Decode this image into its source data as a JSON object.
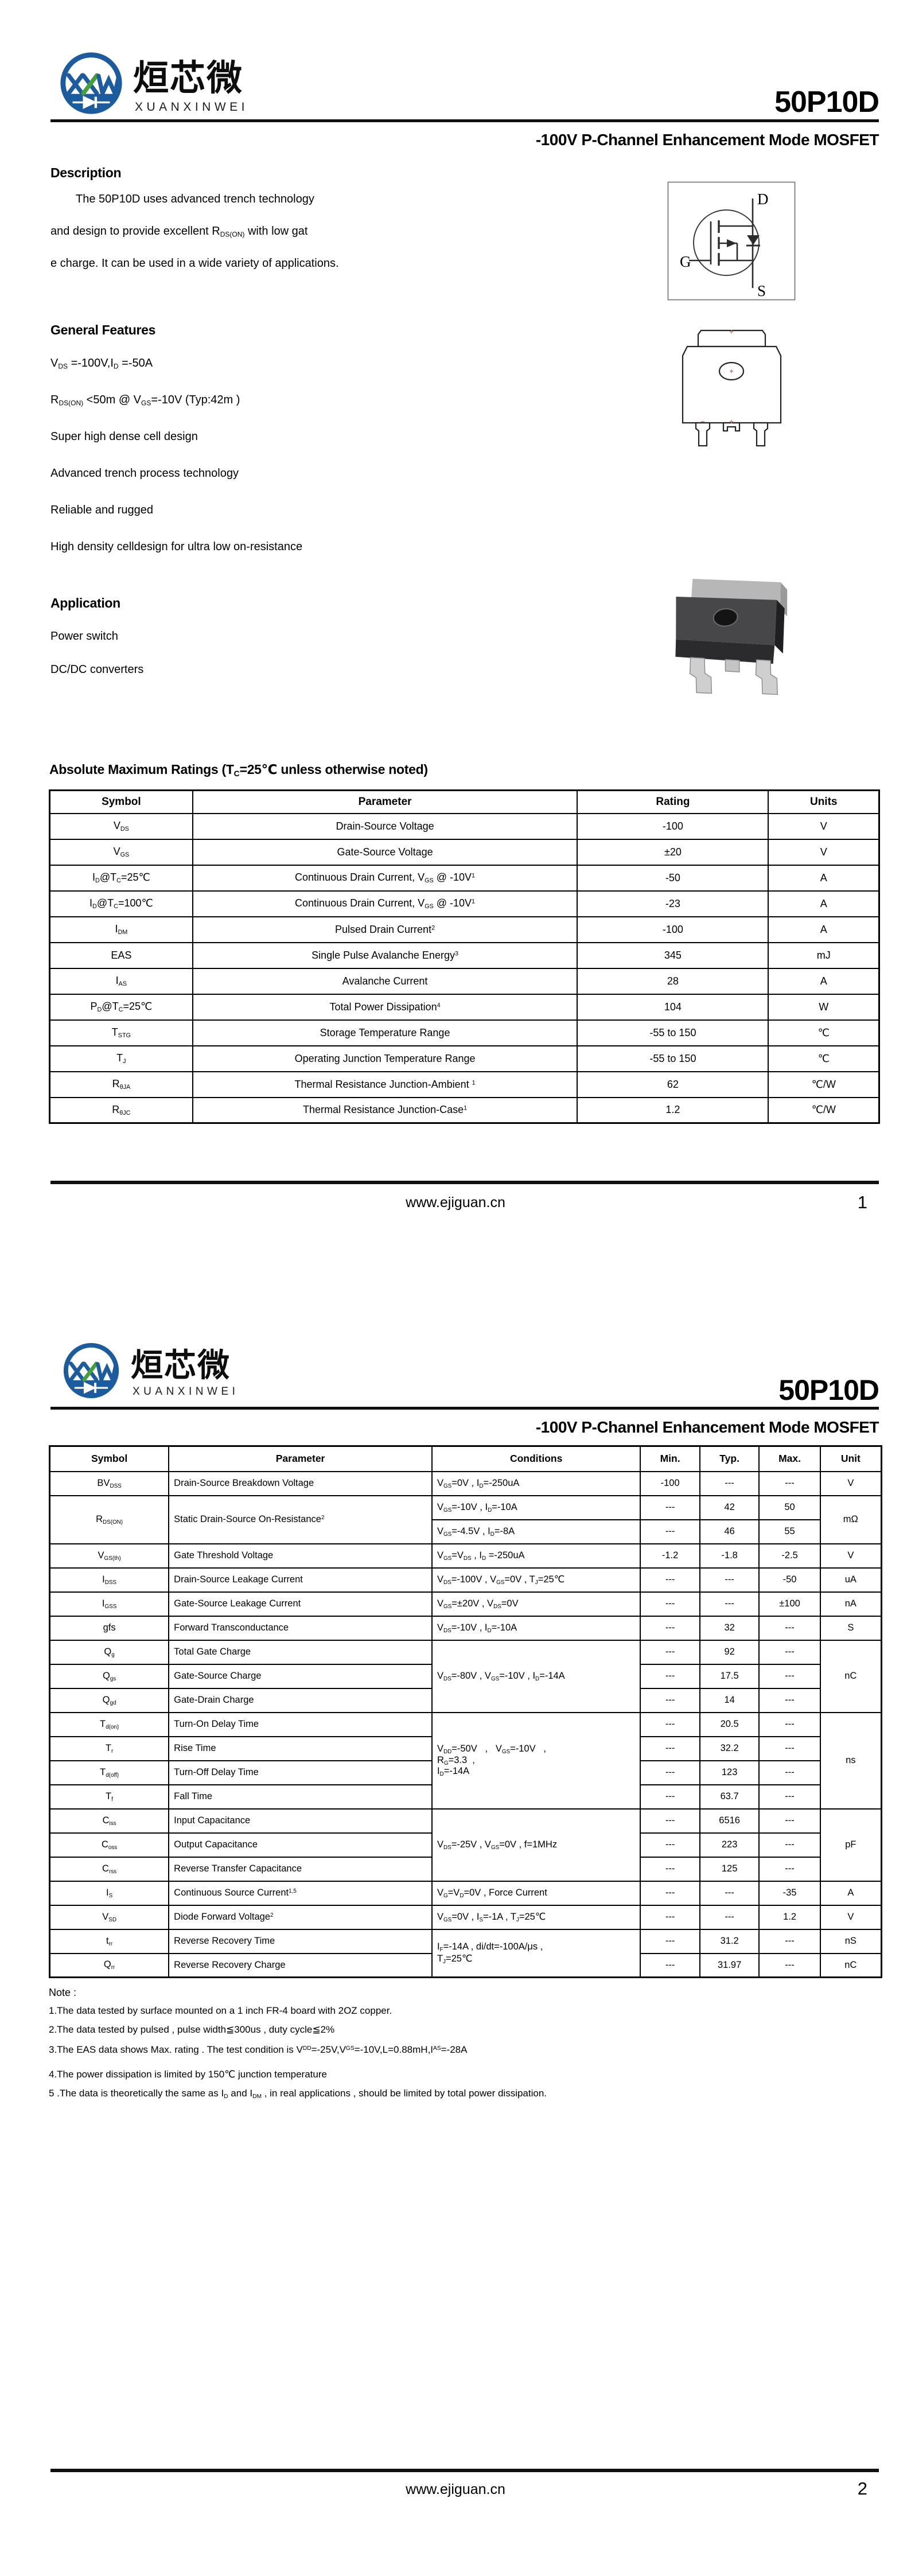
{
  "brand": {
    "cn": "烜芯微",
    "en": "XUANXINWEI"
  },
  "colors": {
    "logo_blue": "#1b5b9e",
    "logo_green": "#45a03c",
    "ink": "#000000"
  },
  "page1": {
    "part_number": "50P10D",
    "subtitle": "-100V P-Channel Enhancement Mode MOSFET",
    "description": {
      "heading": "Description",
      "lines": [
        "The 50P10D uses advanced trench technology",
        "and design to provide excellent R<sub>DS(ON)</sub> with low gat",
        "e charge. It can be used in a wide variety of applications."
      ]
    },
    "mosfet_symbol": {
      "drain": "D",
      "gate": "G",
      "source": "S"
    },
    "features": {
      "heading": "General Features",
      "items": [
        "V<sub>DS</sub> =-100V,I<sub>D</sub> =-50A",
        "R<sub>DS(ON)</sub> &lt;50m @ V<sub>GS</sub>=-10V  (Typ:42m )",
        "Super high dense cell design",
        "Advanced trench process technology",
        "Reliable and rugged",
        "High density celldesign for ultra low on-resistance"
      ]
    },
    "application": {
      "heading": "Application",
      "items": [
        "Power switch",
        "DC/DC converters"
      ]
    },
    "amr": {
      "heading": "Absolute Maximum Ratings (T<sub>C</sub>=25℃ unless otherwise noted)",
      "columns": [
        "Symbol",
        "Parameter",
        "Rating",
        "Units"
      ],
      "rows": [
        [
          "V<sub>DS</sub>",
          "Drain-Source Voltage",
          "-100",
          "V"
        ],
        [
          "V<sub>GS</sub>",
          "Gate-Source Voltage",
          "±20",
          "V"
        ],
        [
          "I<sub>D</sub>@T<sub>C</sub>=25℃",
          "Continuous Drain Current, V<sub>GS</sub> @ -10V<sup>1</sup>",
          "-50",
          "A"
        ],
        [
          "I<sub>D</sub>@T<sub>C</sub>=100℃",
          "Continuous Drain Current, V<sub>GS</sub> @ -10V<sup>1</sup>",
          "-23",
          "A"
        ],
        [
          "I<sub>DM</sub>",
          "Pulsed Drain Current<sup>2</sup>",
          "-100",
          "A"
        ],
        [
          "EAS",
          "Single Pulse Avalanche Energy<sup>3</sup>",
          "345",
          "mJ"
        ],
        [
          "I<sub>AS</sub>",
          "Avalanche Current",
          "28",
          "A"
        ],
        [
          "P<sub>D</sub>@T<sub>C</sub>=25℃",
          "Total Power Dissipation<sup>4</sup>",
          "104",
          "W"
        ],
        [
          "T<sub>STG</sub>",
          "Storage Temperature Range",
          "-55 to 150",
          "℃"
        ],
        [
          "T<sub>J</sub>",
          "Operating Junction Temperature Range",
          "-55 to 150",
          "℃"
        ],
        [
          "R<sub>θJA</sub>",
          "Thermal Resistance Junction-Ambient <sup>1</sup>",
          "62",
          "℃/W"
        ],
        [
          "R<sub>θJC</sub>",
          "Thermal Resistance Junction-Case<sup>1</sup>",
          "1.2",
          "℃/W"
        ]
      ]
    },
    "footer": {
      "url": "www.ejiguan.cn",
      "page": "1"
    }
  },
  "page2": {
    "part_number": "50P10D",
    "subtitle": "-100V P-Channel Enhancement Mode MOSFET",
    "ec": {
      "columns": [
        "Symbol",
        "Parameter",
        "Conditions",
        "Min.",
        "Typ.",
        "Max.",
        "Unit"
      ],
      "rows": [
        [
          {
            "t": "BV<sub>DSS</sub>"
          },
          {
            "t": "Drain-Source Breakdown Voltage",
            "cls": "left"
          },
          {
            "t": "V<sub>GS</sub>=0V , I<sub>D</sub>=-250uA",
            "cls": "left"
          },
          {
            "t": "-100"
          },
          {
            "t": "---"
          },
          {
            "t": "---"
          },
          {
            "t": "V"
          }
        ],
        [
          {
            "t": "R<sub>DS(ON)</sub>",
            "rs": 2
          },
          {
            "t": "Static Drain-Source On-Resistance<sup>2</sup>",
            "rs": 2,
            "cls": "left"
          },
          {
            "t": "V<sub>GS</sub>=-10V , I<sub>D</sub>=-10A",
            "cls": "left"
          },
          {
            "t": "---"
          },
          {
            "t": "42"
          },
          {
            "t": "50"
          },
          {
            "t": "mΩ",
            "rs": 2
          }
        ],
        [
          {
            "t": "V<sub>GS</sub>=-4.5V , I<sub>D</sub>=-8A",
            "cls": "left"
          },
          {
            "t": "---"
          },
          {
            "t": "46"
          },
          {
            "t": "55"
          }
        ],
        [
          {
            "t": "V<sub>GS(th)</sub>"
          },
          {
            "t": "Gate Threshold Voltage",
            "cls": "left"
          },
          {
            "t": "V<sub>GS</sub>=V<sub>DS</sub> , I<sub>D</sub> =-250uA",
            "cls": "left"
          },
          {
            "t": "-1.2"
          },
          {
            "t": "-1.8"
          },
          {
            "t": "-2.5"
          },
          {
            "t": "V"
          }
        ],
        [
          {
            "t": "I<sub>DSS</sub>"
          },
          {
            "t": "Drain-Source Leakage Current",
            "cls": "left"
          },
          {
            "t": "V<sub>DS</sub>=-100V , V<sub>GS</sub>=0V , T<sub>J</sub>=25℃",
            "cls": "left"
          },
          {
            "t": "---"
          },
          {
            "t": "---"
          },
          {
            "t": "-50"
          },
          {
            "t": "uA"
          }
        ],
        [
          {
            "t": "I<sub>GSS</sub>"
          },
          {
            "t": "Gate-Source Leakage Current",
            "cls": "left"
          },
          {
            "t": "V<sub>GS</sub>=±20V , V<sub>DS</sub>=0V",
            "cls": "left"
          },
          {
            "t": "---"
          },
          {
            "t": "---"
          },
          {
            "t": "±100"
          },
          {
            "t": "nA"
          }
        ],
        [
          {
            "t": "gfs"
          },
          {
            "t": "Forward Transconductance",
            "cls": "left"
          },
          {
            "t": "V<sub>DS</sub>=-10V , I<sub>D</sub>=-10A",
            "cls": "left"
          },
          {
            "t": "---"
          },
          {
            "t": "32"
          },
          {
            "t": "---"
          },
          {
            "t": "S"
          }
        ],
        [
          {
            "t": "Q<sub>g</sub>"
          },
          {
            "t": "Total Gate Charge",
            "cls": "left"
          },
          {
            "t": "V<sub>DS</sub>=-80V , V<sub>GS</sub>=-10V , I<sub>D</sub>=-14A",
            "rs": 3,
            "cls": "left"
          },
          {
            "t": "---"
          },
          {
            "t": "92"
          },
          {
            "t": "---"
          },
          {
            "t": "nC",
            "rs": 3
          }
        ],
        [
          {
            "t": "Q<sub>gs</sub>"
          },
          {
            "t": "Gate-Source Charge",
            "cls": "left"
          },
          {
            "t": "---"
          },
          {
            "t": "17.5"
          },
          {
            "t": "---"
          }
        ],
        [
          {
            "t": "Q<sub>gd</sub>"
          },
          {
            "t": "Gate-Drain Charge",
            "cls": "left"
          },
          {
            "t": "---"
          },
          {
            "t": "14"
          },
          {
            "t": "---"
          }
        ],
        [
          {
            "t": "T<sub>d(on)</sub>"
          },
          {
            "t": "Turn-On Delay Time",
            "cls": "left"
          },
          {
            "t": "V<sub>DD</sub>=-50V&nbsp;&nbsp;&nbsp;,&nbsp;&nbsp;&nbsp;V<sub>GS</sub>=-10V&nbsp;&nbsp;&nbsp;,<br>R<sub>G</sub>=3.3&nbsp;&nbsp;,<br>I<sub>D</sub>=-14A",
            "rs": 4,
            "cls": "left"
          },
          {
            "t": "---"
          },
          {
            "t": "20.5"
          },
          {
            "t": "---"
          },
          {
            "t": "ns",
            "rs": 4
          }
        ],
        [
          {
            "t": "T<sub>r</sub>"
          },
          {
            "t": "Rise Time",
            "cls": "left"
          },
          {
            "t": "---"
          },
          {
            "t": "32.2"
          },
          {
            "t": "---"
          }
        ],
        [
          {
            "t": "T<sub>d(off)</sub>"
          },
          {
            "t": "Turn-Off Delay Time",
            "cls": "left"
          },
          {
            "t": "---"
          },
          {
            "t": "123"
          },
          {
            "t": "---"
          }
        ],
        [
          {
            "t": "T<sub>f</sub>"
          },
          {
            "t": "Fall Time",
            "cls": "left"
          },
          {
            "t": "---"
          },
          {
            "t": "63.7"
          },
          {
            "t": "---"
          }
        ],
        [
          {
            "t": "C<sub>iss</sub>"
          },
          {
            "t": "Input Capacitance",
            "cls": "left"
          },
          {
            "t": "V<sub>DS</sub>=-25V , V<sub>GS</sub>=0V , f=1MHz",
            "rs": 3,
            "cls": "left"
          },
          {
            "t": "---"
          },
          {
            "t": "6516"
          },
          {
            "t": "---"
          },
          {
            "t": "pF",
            "rs": 3
          }
        ],
        [
          {
            "t": "C<sub>oss</sub>"
          },
          {
            "t": "Output Capacitance",
            "cls": "left"
          },
          {
            "t": "---"
          },
          {
            "t": "223"
          },
          {
            "t": "---"
          }
        ],
        [
          {
            "t": "C<sub>rss</sub>"
          },
          {
            "t": "Reverse Transfer Capacitance",
            "cls": "left"
          },
          {
            "t": "---"
          },
          {
            "t": "125"
          },
          {
            "t": "---"
          }
        ],
        [
          {
            "t": "I<sub>S</sub>"
          },
          {
            "t": "Continuous Source Current<sup>1,5</sup>",
            "cls": "left"
          },
          {
            "t": "V<sub>G</sub>=V<sub>D</sub>=0V , Force Current",
            "cls": "left"
          },
          {
            "t": "---"
          },
          {
            "t": "---"
          },
          {
            "t": "-35"
          },
          {
            "t": "A"
          }
        ],
        [
          {
            "t": "V<sub>SD</sub>"
          },
          {
            "t": "Diode Forward Voltage<sup>2</sup>",
            "cls": "left"
          },
          {
            "t": "V<sub>GS</sub>=0V , I<sub>S</sub>=-1A , T<sub>J</sub>=25℃",
            "cls": "left"
          },
          {
            "t": "---"
          },
          {
            "t": "---"
          },
          {
            "t": "1.2"
          },
          {
            "t": "V"
          }
        ],
        [
          {
            "t": "t<sub>rr</sub>"
          },
          {
            "t": "Reverse Recovery Time",
            "cls": "left"
          },
          {
            "t": "I<sub>F</sub>=-14A , di/dt=-100A/μs ,<br>T<sub>J</sub>=25℃",
            "rs": 2,
            "cls": "left"
          },
          {
            "t": "---"
          },
          {
            "t": "31.2"
          },
          {
            "t": "---"
          },
          {
            "t": "nS"
          }
        ],
        [
          {
            "t": "Q<sub>rr</sub>"
          },
          {
            "t": "Reverse Recovery Charge",
            "cls": "left"
          },
          {
            "t": "---"
          },
          {
            "t": "31.97"
          },
          {
            "t": "---"
          },
          {
            "t": "nC"
          }
        ]
      ]
    },
    "notes": {
      "title": "Note :",
      "items": [
        "1.The data tested by surface mounted on a 1 inch FR-4 board with 2OZ copper.",
        "2.The data tested by pulsed , pulse width≦300us , duty cycle≦2%",
        "3.The EAS data shows Max. rating . The test condition is V<sup>DD</sup>=-25V,V<sup>GS</sup>=-10V,L=0.88mH,I<sup>AS</sup>=-28A",
        "4.The power dissipation is limited by 150℃ junction temperature",
        "5 .The data is theoretically the same as I<sub>D</sub> and I<sub>DM</sub> , in real applications , should be limited by total power dissipation."
      ]
    },
    "footer": {
      "url": "www.ejiguan.cn",
      "page": "2"
    }
  }
}
